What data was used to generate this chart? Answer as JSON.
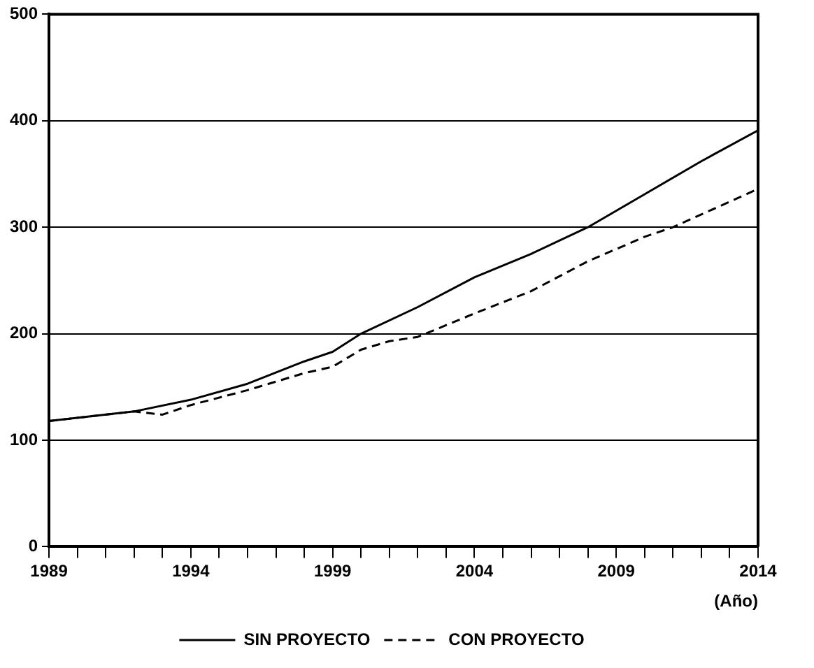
{
  "chart_data": {
    "type": "line",
    "xlabel": "(Año)",
    "xlim": [
      1989,
      2014
    ],
    "ylim": [
      0,
      500
    ],
    "yticks": [
      0,
      100,
      200,
      300,
      400,
      500
    ],
    "xticks": [
      1989,
      {
        "value": 1990,
        "label": null
      },
      {
        "value": 1991,
        "label": null
      },
      {
        "value": 1992,
        "label": null
      },
      {
        "value": 1993,
        "label": null
      },
      1994,
      {
        "value": 1995,
        "label": null
      },
      {
        "value": 1996,
        "label": null
      },
      {
        "value": 1997,
        "label": null
      },
      {
        "value": 1998,
        "label": null
      },
      1999,
      {
        "value": 2000,
        "label": null
      },
      {
        "value": 2001,
        "label": null
      },
      {
        "value": 2002,
        "label": null
      },
      {
        "value": 2003,
        "label": null
      },
      2004,
      {
        "value": 2005,
        "label": null
      },
      {
        "value": 2006,
        "label": null
      },
      {
        "value": 2007,
        "label": null
      },
      {
        "value": 2008,
        "label": null
      },
      2009,
      {
        "value": 2010,
        "label": null
      },
      {
        "value": 2011,
        "label": null
      },
      {
        "value": 2012,
        "label": null
      },
      {
        "value": 2013,
        "label": null
      },
      2014
    ],
    "grid": "y",
    "legend": "bottom",
    "marker": "none",
    "series": [
      {
        "name": "SIN PROYECTO",
        "color": "#000000",
        "line_style": "solid",
        "x": [
          1989,
          1992,
          1994,
          1996,
          1998,
          1999,
          2000,
          2002,
          2004,
          2006,
          2008,
          2010,
          2012,
          2014
        ],
        "values": [
          118,
          127,
          138,
          153,
          174,
          183,
          200,
          225,
          253,
          275,
          300,
          331,
          362,
          391
        ]
      },
      {
        "name": "CON PROYECTO",
        "color": "#000000",
        "line_style": "dashed",
        "x": [
          1989,
          1992,
          1993,
          1994,
          1996,
          1998,
          1999,
          2000,
          2001,
          2002,
          2004,
          2006,
          2008,
          2010,
          2011,
          2012,
          2014
        ],
        "values": [
          118,
          127,
          124,
          133,
          147,
          163,
          169,
          185,
          193,
          197,
          219,
          240,
          268,
          291,
          300,
          312,
          336
        ]
      }
    ]
  }
}
